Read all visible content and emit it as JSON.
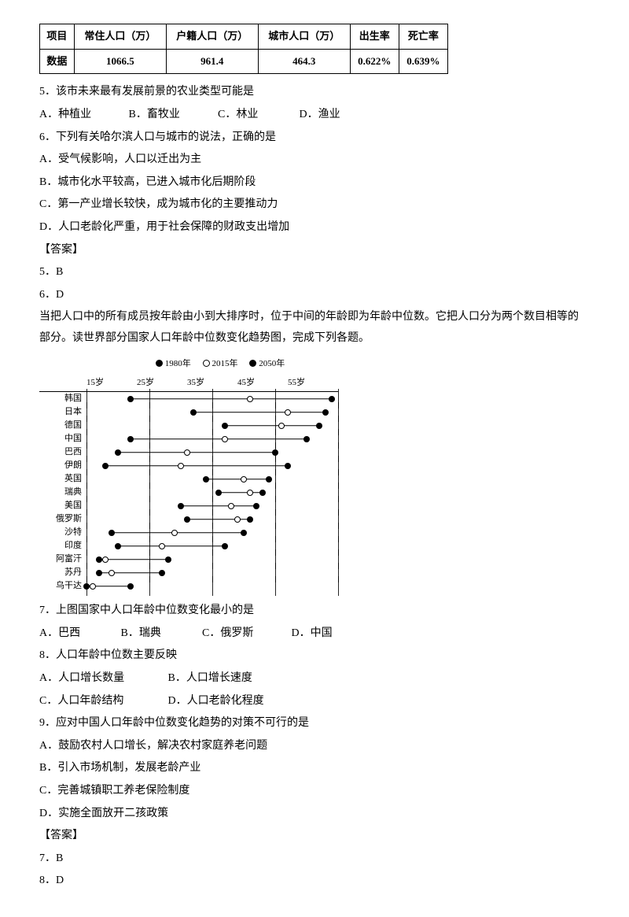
{
  "table": {
    "headers": [
      "项目",
      "常住人口（万）",
      "户籍人口（万）",
      "城市人口（万）",
      "出生率",
      "死亡率"
    ],
    "row_label": "数据",
    "row": [
      "1066.5",
      "961.4",
      "464.3",
      "0.622%",
      "0.639%"
    ]
  },
  "q5": {
    "stem": "5．该市未来最有发展前景的农业类型可能是",
    "A": "A．种植业",
    "B": "B．畜牧业",
    "C": "C．林业",
    "D": "D．渔业"
  },
  "q6": {
    "stem": "6．下列有关哈尔滨人口与城市的说法，正确的是",
    "A": "A．受气候影响，人口以迁出为主",
    "B": "B．城市化水平较高，已进入城市化后期阶段",
    "C": "C．第一产业增长较快，成为城市化的主要推动力",
    "D": "D．人口老龄化严重，用于社会保障的财政支出增加"
  },
  "ans56_label": "【答案】",
  "ans5": "5．B",
  "ans6": "6．D",
  "passage2": {
    "p1": "当把人口中的所有成员按年龄由小到大排序时，位于中间的年龄即为年龄中位数。它把人口分为两个数目相等的部分。读世界部分国家人口年龄中位数变化趋势图，完成下列各题。",
    "p2_hidden": ""
  },
  "chart": {
    "legend": {
      "y1980": "1980年",
      "y2015": "2015年",
      "y2050": "2050年"
    },
    "axis_min": 15,
    "axis_max": 55,
    "axis_step": 10,
    "axis_labels": [
      "15岁",
      "25岁",
      "35岁",
      "45岁",
      "55岁"
    ],
    "rows": [
      {
        "label": "韩国",
        "a": 22,
        "b": 41,
        "c": 54
      },
      {
        "label": "日本",
        "a": 32,
        "b": 47,
        "c": 53
      },
      {
        "label": "德国",
        "a": 37,
        "b": 46,
        "c": 52
      },
      {
        "label": "中国",
        "a": 22,
        "b": 37,
        "c": 50
      },
      {
        "label": "巴西",
        "a": 20,
        "b": 31,
        "c": 45
      },
      {
        "label": "伊朗",
        "a": 18,
        "b": 30,
        "c": 47
      },
      {
        "label": "英国",
        "a": 34,
        "b": 40,
        "c": 44
      },
      {
        "label": "瑞典",
        "a": 36,
        "b": 41,
        "c": 43
      },
      {
        "label": "美国",
        "a": 30,
        "b": 38,
        "c": 42
      },
      {
        "label": "俄罗斯",
        "a": 31,
        "b": 39,
        "c": 41
      },
      {
        "label": "沙特",
        "a": 19,
        "b": 29,
        "c": 40
      },
      {
        "label": "印度",
        "a": 20,
        "b": 27,
        "c": 37
      },
      {
        "label": "阿富汗",
        "a": 17,
        "b": 18,
        "c": 28
      },
      {
        "label": "苏丹",
        "a": 17,
        "b": 19,
        "c": 27
      },
      {
        "label": "乌干达",
        "a": 15,
        "b": 16,
        "c": 22
      }
    ]
  },
  "q7": {
    "stem": "7．上图国家中人口年龄中位数变化最小的是",
    "A": "A．巴西",
    "B": "B．瑞典",
    "C": "C．俄罗斯",
    "D": "D．中国"
  },
  "q8": {
    "stem": "8．人口年龄中位数主要反映",
    "A": "A．人口增长数量",
    "B": "B．人口增长速度",
    "C": "C．人口年龄结构",
    "D": "D．人口老龄化程度"
  },
  "q9": {
    "stem": "9．应对中国人口年龄中位数变化趋势的对策不可行的是",
    "A": "A．鼓励农村人口增长，解决农村家庭养老问题",
    "B": "B．引入市场机制，发展老龄产业",
    "C": "C．完善城镇职工养老保险制度",
    "D": "D．实施全面放开二孩政策"
  },
  "ans789_label": "【答案】",
  "ans7": "7．B",
  "ans8": "8．D",
  "opt_gaps": {
    "w1": "80px",
    "w2": "90px",
    "w3": "80px"
  }
}
